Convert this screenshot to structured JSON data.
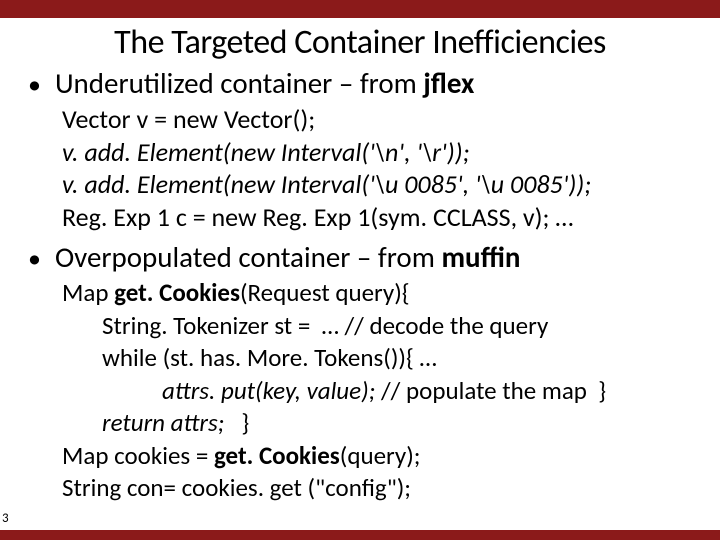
{
  "colors": {
    "bar": "#8b1a1a",
    "background": "#ffffff",
    "text": "#000000"
  },
  "pageNumber": "3",
  "title": "The Targeted Container Inefficiencies",
  "bullet1": {
    "prefix": "Underutilized container – from ",
    "bold": "jflex"
  },
  "code1": {
    "l1": "Vector v = new Vector();",
    "l2": "v. add. Element(new Interval('\\n', '\\r'));",
    "l3": "v. add. Element(new Interval('\\u 0085', '\\u 0085'));",
    "l4": "Reg. Exp 1 c = new Reg. Exp 1(sym. CCLASS, v); …"
  },
  "bullet2": {
    "prefix": "Overpopulated container – from ",
    "bold": "muffin"
  },
  "code2": {
    "l1a": "Map ",
    "l1b": "get. Cookies",
    "l1c": "(Request query){",
    "l2": "String. Tokenizer st =  … // decode the query",
    "l3": "while (st. has. More. Tokens()){ …",
    "l4a": "attrs. put(key, value); ",
    "l4b": "// populate the map  }",
    "l5a": "return attrs;",
    "l5b": "   }",
    "l6a": "Map cookies = ",
    "l6b": "get. Cookies",
    "l6c": "(query);",
    "l7": "String con= cookies. get (\"config\");"
  }
}
